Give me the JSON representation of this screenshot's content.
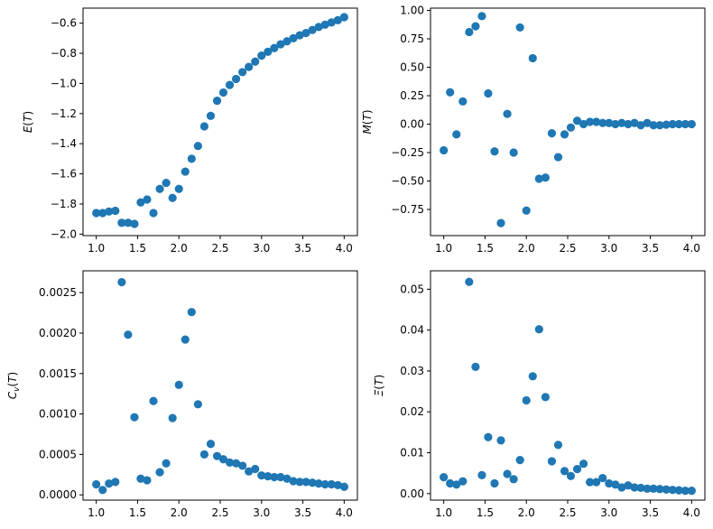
{
  "chart_data": [
    {
      "type": "scatter",
      "ylabel": "E(T)",
      "xlim": [
        0.84,
        4.16
      ],
      "ylim": [
        -2.01,
        -0.5
      ],
      "xticks": [
        1.0,
        1.5,
        2.0,
        2.5,
        3.0,
        3.5,
        4.0
      ],
      "xtick_labels": [
        "1.0",
        "1.5",
        "2.0",
        "2.5",
        "3.0",
        "3.5",
        "4.0"
      ],
      "yticks": [
        -2.0,
        -1.8,
        -1.6,
        -1.4,
        -1.2,
        -1.0,
        -0.8,
        -0.6
      ],
      "ytick_labels": [
        "−2.0",
        "−1.8",
        "−1.6",
        "−1.4",
        "−1.2",
        "−1.0",
        "−0.8",
        "−0.6"
      ],
      "x": [
        1.0,
        1.077,
        1.154,
        1.231,
        1.308,
        1.385,
        1.462,
        1.538,
        1.615,
        1.692,
        1.769,
        1.846,
        1.923,
        2.0,
        2.077,
        2.154,
        2.231,
        2.308,
        2.385,
        2.462,
        2.538,
        2.615,
        2.692,
        2.769,
        2.846,
        2.923,
        3.0,
        3.077,
        3.154,
        3.231,
        3.308,
        3.385,
        3.462,
        3.538,
        3.615,
        3.692,
        3.769,
        3.846,
        3.923,
        4.0
      ],
      "y": [
        -1.86,
        -1.86,
        -1.85,
        -1.845,
        -1.925,
        -1.925,
        -1.932,
        -1.79,
        -1.77,
        -1.86,
        -1.7,
        -1.66,
        -1.76,
        -1.7,
        -1.585,
        -1.5,
        -1.415,
        -1.285,
        -1.215,
        -1.115,
        -1.06,
        -1.01,
        -0.97,
        -0.925,
        -0.89,
        -0.855,
        -0.815,
        -0.79,
        -0.765,
        -0.74,
        -0.72,
        -0.7,
        -0.68,
        -0.665,
        -0.645,
        -0.625,
        -0.61,
        -0.595,
        -0.58,
        -0.56
      ]
    },
    {
      "type": "scatter",
      "ylabel": "M(T)",
      "xlim": [
        0.84,
        4.16
      ],
      "ylim": [
        -0.98,
        1.02
      ],
      "xticks": [
        1.0,
        1.5,
        2.0,
        2.5,
        3.0,
        3.5,
        4.0
      ],
      "xtick_labels": [
        "1.0",
        "1.5",
        "2.0",
        "2.5",
        "3.0",
        "3.5",
        "4.0"
      ],
      "yticks": [
        -0.75,
        -0.5,
        -0.25,
        0.0,
        0.25,
        0.5,
        0.75,
        1.0
      ],
      "ytick_labels": [
        "−0.75",
        "−0.50",
        "−0.25",
        "0.00",
        "0.25",
        "0.50",
        "0.75",
        "1.00"
      ],
      "x": [
        1.0,
        1.077,
        1.154,
        1.231,
        1.308,
        1.385,
        1.462,
        1.538,
        1.615,
        1.692,
        1.769,
        1.846,
        1.923,
        2.0,
        2.077,
        2.154,
        2.231,
        2.308,
        2.385,
        2.462,
        2.538,
        2.615,
        2.692,
        2.769,
        2.846,
        2.923,
        3.0,
        3.077,
        3.154,
        3.231,
        3.308,
        3.385,
        3.462,
        3.538,
        3.615,
        3.692,
        3.769,
        3.846,
        3.923,
        4.0
      ],
      "y": [
        -0.23,
        0.28,
        -0.09,
        0.2,
        0.81,
        0.86,
        0.95,
        0.27,
        -0.24,
        -0.87,
        0.09,
        -0.25,
        0.85,
        -0.76,
        0.58,
        -0.48,
        -0.47,
        -0.08,
        -0.29,
        -0.09,
        -0.03,
        0.03,
        0.0,
        0.02,
        0.02,
        0.01,
        0.01,
        0.0,
        0.01,
        0.0,
        0.01,
        -0.01,
        0.01,
        -0.01,
        -0.01,
        -0.005,
        0.0,
        0.0,
        0.0,
        0.0
      ]
    },
    {
      "type": "scatter",
      "ylabel": "C_v(T)",
      "xlim": [
        0.84,
        4.16
      ],
      "ylim": [
        -6.5e-05,
        0.00277
      ],
      "xticks": [
        1.0,
        1.5,
        2.0,
        2.5,
        3.0,
        3.5,
        4.0
      ],
      "xtick_labels": [
        "1.0",
        "1.5",
        "2.0",
        "2.5",
        "3.0",
        "3.5",
        "4.0"
      ],
      "yticks": [
        0.0,
        0.0005,
        0.001,
        0.0015,
        0.002,
        0.0025
      ],
      "ytick_labels": [
        "0.0000",
        "0.0005",
        "0.0010",
        "0.0015",
        "0.0020",
        "0.0025"
      ],
      "x": [
        1.0,
        1.077,
        1.154,
        1.231,
        1.308,
        1.385,
        1.462,
        1.538,
        1.615,
        1.692,
        1.769,
        1.846,
        1.923,
        2.0,
        2.077,
        2.154,
        2.231,
        2.308,
        2.385,
        2.462,
        2.538,
        2.615,
        2.692,
        2.769,
        2.846,
        2.923,
        3.0,
        3.077,
        3.154,
        3.231,
        3.308,
        3.385,
        3.462,
        3.538,
        3.615,
        3.692,
        3.769,
        3.846,
        3.923,
        4.0
      ],
      "y": [
        0.00013,
        6e-05,
        0.00014,
        0.00016,
        0.00263,
        0.00198,
        0.00096,
        0.0002,
        0.00018,
        0.00116,
        0.00028,
        0.00039,
        0.00095,
        0.00136,
        0.00192,
        0.00226,
        0.00112,
        0.0005,
        0.00063,
        0.00048,
        0.00044,
        0.0004,
        0.00039,
        0.00036,
        0.00029,
        0.00032,
        0.00024,
        0.00023,
        0.00022,
        0.00022,
        0.0002,
        0.00017,
        0.00016,
        0.00016,
        0.00015,
        0.00014,
        0.00013,
        0.00013,
        0.00012,
        0.0001
      ]
    },
    {
      "type": "scatter",
      "ylabel": "Ξ(T)",
      "xlim": [
        0.84,
        4.16
      ],
      "ylim": [
        -0.0016,
        0.0545
      ],
      "xticks": [
        1.0,
        1.5,
        2.0,
        2.5,
        3.0,
        3.5,
        4.0
      ],
      "xtick_labels": [
        "1.0",
        "1.5",
        "2.0",
        "2.5",
        "3.0",
        "3.5",
        "4.0"
      ],
      "yticks": [
        0.0,
        0.01,
        0.02,
        0.03,
        0.04,
        0.05
      ],
      "ytick_labels": [
        "0.00",
        "0.01",
        "0.02",
        "0.03",
        "0.04",
        "0.05"
      ],
      "x": [
        1.0,
        1.077,
        1.154,
        1.231,
        1.308,
        1.385,
        1.462,
        1.538,
        1.615,
        1.692,
        1.769,
        1.846,
        1.923,
        2.0,
        2.077,
        2.154,
        2.231,
        2.308,
        2.385,
        2.462,
        2.538,
        2.615,
        2.692,
        2.769,
        2.846,
        2.923,
        3.0,
        3.077,
        3.154,
        3.231,
        3.308,
        3.385,
        3.462,
        3.538,
        3.615,
        3.692,
        3.769,
        3.846,
        3.923,
        4.0
      ],
      "y": [
        0.004,
        0.0025,
        0.0022,
        0.003,
        0.0518,
        0.031,
        0.0045,
        0.0138,
        0.0025,
        0.013,
        0.0048,
        0.0035,
        0.0082,
        0.0228,
        0.0287,
        0.0402,
        0.0236,
        0.0079,
        0.0119,
        0.0055,
        0.0043,
        0.006,
        0.0073,
        0.0028,
        0.0028,
        0.0038,
        0.0025,
        0.0022,
        0.0015,
        0.002,
        0.0015,
        0.0014,
        0.0012,
        0.0012,
        0.0011,
        0.001,
        0.0009,
        0.0008,
        0.0007,
        0.0007
      ]
    }
  ],
  "style": {
    "marker_color": "#1f77b4",
    "axes_color": "#000000",
    "background": "#ffffff"
  }
}
